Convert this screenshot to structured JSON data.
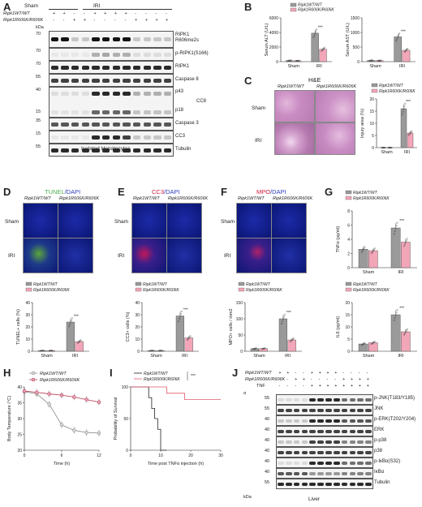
{
  "panels": {
    "A": {
      "letter": "A",
      "genotype_rows": [
        "Ripk1WT/WT",
        "Ripk1R606K/R606K"
      ],
      "group_labels": [
        "Sham",
        "IRI"
      ],
      "lane_signs_wt": [
        "+",
        "+",
        "-",
        "-",
        "+",
        "+",
        "+",
        "+",
        "-",
        "-",
        "-",
        "-"
      ],
      "lane_signs_mut": [
        "-",
        "-",
        "+",
        "+",
        "-",
        "-",
        "-",
        "-",
        "+",
        "+",
        "+",
        "+"
      ],
      "kda_header": "kDa",
      "blots": [
        {
          "name": "RIPK1 R606me2s",
          "kda": "70"
        },
        {
          "name": "p-RIPK1(S166)",
          "kda": "70"
        },
        {
          "name": "RIPK1",
          "kda": "70"
        },
        {
          "name": "Caspase 8",
          "kda": "55"
        },
        {
          "name": "p43",
          "kda": "40"
        },
        {
          "name": "p18",
          "kda": "15"
        },
        {
          "name": "CC8",
          "kda": ""
        },
        {
          "name": "Caspase 3",
          "kda": "35"
        },
        {
          "name": "CC3",
          "kda": "15"
        },
        {
          "name": "Tubulin",
          "kda": "55"
        }
      ],
      "footer": "Isolated Hepatocytes"
    },
    "B": {
      "letter": "B",
      "legend": [
        "Ripk1WT/WT",
        "Ripk1R606K/R606K"
      ],
      "colors": {
        "wt": "#9a9a9a",
        "mut": "#f2a6b8"
      },
      "significance": "***",
      "charts": [
        {
          "ylabel": "Serum ALT (U/L)",
          "yticks": [
            "0",
            "2000",
            "4000",
            "6000"
          ],
          "categories": [
            "Sham",
            "IRI"
          ]
        },
        {
          "ylabel": "Serum AST (U/L)",
          "yticks": [
            "0",
            "500",
            "1000",
            "1500"
          ],
          "categories": [
            "Sham",
            "IRI"
          ]
        }
      ]
    },
    "C": {
      "letter": "C",
      "title": "H&E",
      "col_labels": [
        "Ripk1WT/WT",
        "Ripk1R606K/R606K"
      ],
      "row_labels": [
        "Sham",
        "IRI"
      ],
      "legend": [
        "Ripk1WT/WT",
        "Ripk1R606K/R606K"
      ],
      "ylabel": "Injury area (%)",
      "yticks": [
        "0",
        "5",
        "10",
        "15",
        "20"
      ],
      "categories": [
        "Sham",
        "IRI"
      ],
      "significance": "***"
    },
    "D": {
      "letter": "D",
      "title_main": "TUNEL",
      "title_dapi": "/DAPI",
      "col_labels": [
        "Ripk1WT/WT",
        "Ripk1R606K/R606K"
      ],
      "row_labels": [
        "Sham",
        "IRI"
      ],
      "legend": [
        "Ripk1WT/WT",
        "Ripk1R606K/R606K"
      ],
      "ylabel": "TUNEL+ cells (%)",
      "yticks": [
        "0",
        "10",
        "20",
        "30",
        "40"
      ],
      "categories": [
        "Sham",
        "IRI"
      ],
      "significance": "***"
    },
    "E": {
      "letter": "E",
      "title_main": "CC3",
      "title_dapi": "/DAPI",
      "col_labels": [
        "Ripk1WT/WT",
        "Ripk1R606K/R606K"
      ],
      "row_labels": [
        "Sham",
        "IRI"
      ],
      "legend": [
        "Ripk1WT/WT",
        "Ripk1R606K/R606K"
      ],
      "ylabel": "CC3+ cells (%)",
      "yticks": [
        "0",
        "10",
        "20",
        "30",
        "40"
      ],
      "categories": [
        "Sham",
        "IRI"
      ],
      "significance": "***"
    },
    "F": {
      "letter": "F",
      "title_main": "MPO",
      "title_dapi": "/DAPI",
      "col_labels": [
        "Ripk1WT/WT",
        "Ripk1R606K/R606K"
      ],
      "row_labels": [
        "Sham",
        "IRI"
      ],
      "legend": [
        "Ripk1WT/WT",
        "Ripk1R606K/R606K"
      ],
      "ylabel": "MPO+ cells / mm2",
      "yticks": [
        "0",
        "50",
        "100",
        "150"
      ],
      "categories": [
        "Sham",
        "IRI"
      ],
      "significance": "***"
    },
    "G": {
      "letter": "G",
      "legend": [
        "Ripk1WT/WT",
        "Ripk1R606K/R606K"
      ],
      "charts": [
        {
          "ylabel": "TNFα (pg/ml)",
          "yticks": [
            "0",
            "2",
            "4",
            "6",
            "8"
          ],
          "categories": [
            "Sham",
            "IRI"
          ],
          "significance": "***"
        },
        {
          "ylabel": "IL6 (pg/ml)",
          "yticks": [
            "0",
            "5",
            "10",
            "15",
            "20"
          ],
          "categories": [
            "Sham",
            "IRI"
          ],
          "significance": "***"
        }
      ]
    },
    "H": {
      "letter": "H",
      "legend": [
        "Ripk1WT/WT",
        "Ripk1R606K/R606K"
      ],
      "ylabel": "Body Temperature (°C)",
      "xlabel": "Time (h)",
      "yticks": [
        "20",
        "25",
        "30",
        "35",
        "40"
      ],
      "xticks": [
        "0",
        "6",
        "12"
      ]
    },
    "I": {
      "letter": "I",
      "legend": [
        "Ripk1WT/WT",
        "Ripk1R606K/R606K"
      ],
      "ylabel": "Probability of Survival",
      "xlabel": "Time post TNFα injection (h)",
      "yticks": [
        "0",
        "50",
        "100"
      ],
      "xticks": [
        "0",
        "10",
        "20",
        "30"
      ],
      "significance": "***"
    },
    "J": {
      "letter": "J",
      "genotype_rows": [
        "Ripk1WT/WT",
        "Ripk1R606K/R606K",
        "TNF"
      ],
      "lane_signs_wt": [
        "+",
        "+",
        "-",
        "-",
        "+",
        "+",
        "+",
        "+",
        "-",
        "-",
        "-",
        "-"
      ],
      "lane_signs_mut": [
        "-",
        "-",
        "+",
        "+",
        "-",
        "-",
        "-",
        "-",
        "+",
        "+",
        "+",
        "+"
      ],
      "lane_signs_tnf": [
        "-",
        "-",
        "-",
        "-",
        "+",
        "+",
        "+",
        "+",
        "+",
        "+",
        "+",
        "+"
      ],
      "alpha": "α",
      "kda_footer": "kDa",
      "footer": "Liver",
      "blots": [
        {
          "name": "p-JNK(T183/Y185)",
          "kda": "55"
        },
        {
          "name": "JNK",
          "kda": "55"
        },
        {
          "name": "p-ERK(T202/Y204)",
          "kda": "40"
        },
        {
          "name": "ERK",
          "kda": "40"
        },
        {
          "name": "p-p38",
          "kda": "40"
        },
        {
          "name": "p38",
          "kda": "40"
        },
        {
          "name": "p-IκBα(S32)",
          "kda": "40"
        },
        {
          "name": "IκBα",
          "kda": "40"
        },
        {
          "name": "Tubulin",
          "kda": "55"
        }
      ]
    }
  },
  "chart_data": [
    {
      "type": "bar",
      "panel": "B-ALT",
      "categories": [
        "Sham",
        "IRI"
      ],
      "ylabel": "Serum ALT (U/L)",
      "ylim": [
        0,
        6000
      ],
      "series": [
        {
          "name": "Ripk1WT/WT",
          "values": [
            150,
            3900
          ]
        },
        {
          "name": "Ripk1R606K/R606K",
          "values": [
            120,
            1700
          ]
        }
      ]
    },
    {
      "type": "bar",
      "panel": "B-AST",
      "categories": [
        "Sham",
        "IRI"
      ],
      "ylabel": "Serum AST (U/L)",
      "ylim": [
        0,
        1500
      ],
      "series": [
        {
          "name": "Ripk1WT/WT",
          "values": [
            40,
            850
          ]
        },
        {
          "name": "Ripk1R606K/R606K",
          "values": [
            35,
            390
          ]
        }
      ]
    },
    {
      "type": "bar",
      "panel": "C",
      "categories": [
        "Sham",
        "IRI"
      ],
      "ylabel": "Injury area (%)",
      "ylim": [
        0,
        20
      ],
      "series": [
        {
          "name": "Ripk1WT/WT",
          "values": [
            0,
            16
          ]
        },
        {
          "name": "Ripk1R606K/R606K",
          "values": [
            0,
            6
          ]
        }
      ]
    },
    {
      "type": "bar",
      "panel": "D",
      "categories": [
        "Sham",
        "IRI"
      ],
      "ylabel": "TUNEL+ cells (%)",
      "ylim": [
        0,
        40
      ],
      "series": [
        {
          "name": "Ripk1WT/WT",
          "values": [
            0.5,
            24
          ]
        },
        {
          "name": "Ripk1R606K/R606K",
          "values": [
            0.5,
            8
          ]
        }
      ]
    },
    {
      "type": "bar",
      "panel": "E",
      "categories": [
        "Sham",
        "IRI"
      ],
      "ylabel": "CC3+ cells (%)",
      "ylim": [
        0,
        40
      ],
      "series": [
        {
          "name": "Ripk1WT/WT",
          "values": [
            0.5,
            29
          ]
        },
        {
          "name": "Ripk1R606K/R606K",
          "values": [
            0.5,
            11
          ]
        }
      ]
    },
    {
      "type": "bar",
      "panel": "F",
      "categories": [
        "Sham",
        "IRI"
      ],
      "ylabel": "MPO+ cells / mm2",
      "ylim": [
        0,
        150
      ],
      "series": [
        {
          "name": "Ripk1WT/WT",
          "values": [
            8,
            100
          ]
        },
        {
          "name": "Ripk1R606K/R606K",
          "values": [
            8,
            35
          ]
        }
      ]
    },
    {
      "type": "bar",
      "panel": "G-TNF",
      "categories": [
        "Sham",
        "IRI"
      ],
      "ylabel": "TNFα (pg/ml)",
      "ylim": [
        0,
        8
      ],
      "series": [
        {
          "name": "Ripk1WT/WT",
          "values": [
            2.6,
            5.6
          ]
        },
        {
          "name": "Ripk1R606K/R606K",
          "values": [
            2.4,
            3.6
          ]
        }
      ]
    },
    {
      "type": "bar",
      "panel": "G-IL6",
      "categories": [
        "Sham",
        "IRI"
      ],
      "ylabel": "IL6 (pg/ml)",
      "ylim": [
        0,
        20
      ],
      "series": [
        {
          "name": "Ripk1WT/WT",
          "values": [
            3,
            15
          ]
        },
        {
          "name": "Ripk1R606K/R606K",
          "values": [
            3.5,
            8
          ]
        }
      ]
    },
    {
      "type": "line",
      "panel": "H",
      "xlabel": "Time (h)",
      "ylabel": "Body Temperature (°C)",
      "ylim": [
        20,
        40
      ],
      "xlim": [
        0,
        12
      ],
      "series": [
        {
          "name": "Ripk1WT/WT",
          "x": [
            0,
            2,
            4,
            6,
            8,
            10,
            12
          ],
          "y": [
            38.5,
            37.8,
            34.5,
            28,
            26.3,
            25.6,
            25.4
          ]
        },
        {
          "name": "Ripk1R606K/R606K",
          "x": [
            0,
            2,
            4,
            6,
            8,
            10,
            12
          ],
          "y": [
            38.7,
            38.3,
            37.8,
            37.4,
            36.8,
            36,
            35.2
          ]
        }
      ]
    },
    {
      "type": "line",
      "panel": "I",
      "xlabel": "Time post TNFα injection (h)",
      "ylabel": "Probability of Survival",
      "ylim": [
        0,
        100
      ],
      "xlim": [
        0,
        30
      ],
      "series": [
        {
          "name": "Ripk1WT/WT",
          "x": [
            0,
            6,
            6,
            7,
            7,
            8,
            8,
            9,
            9,
            10,
            10,
            12
          ],
          "y": [
            100,
            100,
            83,
            83,
            66,
            66,
            50,
            50,
            33,
            33,
            0,
            0
          ]
        },
        {
          "name": "Ripk1R606K/R606K",
          "x": [
            0,
            12,
            12,
            18,
            18,
            30
          ],
          "y": [
            100,
            100,
            90,
            90,
            80,
            80
          ]
        }
      ]
    }
  ]
}
